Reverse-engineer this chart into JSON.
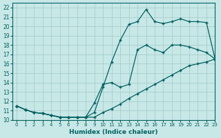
{
  "xlabel": "Humidex (Indice chaleur)",
  "bg_color": "#c8e8e8",
  "line_color": "#006060",
  "xlim": [
    -0.5,
    23
  ],
  "ylim": [
    10,
    22.5
  ],
  "xticks": [
    0,
    1,
    2,
    3,
    4,
    5,
    6,
    7,
    8,
    9,
    10,
    11,
    12,
    13,
    14,
    15,
    16,
    17,
    18,
    19,
    20,
    21,
    22,
    23
  ],
  "yticks": [
    10,
    11,
    12,
    13,
    14,
    15,
    16,
    17,
    18,
    19,
    20,
    21,
    22
  ],
  "curve_top_x": [
    0,
    1,
    2,
    3,
    4,
    5,
    6,
    7,
    8,
    9,
    10,
    11,
    12,
    13,
    14,
    15,
    16,
    17,
    18,
    19,
    20,
    21,
    22,
    23
  ],
  "curve_top_y": [
    11.5,
    11.1,
    10.8,
    10.7,
    10.5,
    10.3,
    10.3,
    10.3,
    10.3,
    10.8,
    13.5,
    16.2,
    18.5,
    20.2,
    20.5,
    21.8,
    20.5,
    20.3,
    20.5,
    20.8,
    20.5,
    20.5,
    20.4,
    16.5
  ],
  "curve_mid_x": [
    0,
    1,
    2,
    3,
    4,
    5,
    6,
    7,
    8,
    9,
    10,
    11,
    12,
    13,
    14,
    15,
    16,
    17,
    18,
    19,
    20,
    21,
    22,
    23
  ],
  "curve_mid_y": [
    11.5,
    11.1,
    10.8,
    10.7,
    10.5,
    10.3,
    10.3,
    10.3,
    10.3,
    11.8,
    13.8,
    14.0,
    13.5,
    13.8,
    17.5,
    18.0,
    17.5,
    17.2,
    18.0,
    18.0,
    17.8,
    17.5,
    17.2,
    16.5
  ],
  "curve_bot_x": [
    0,
    1,
    2,
    3,
    4,
    5,
    6,
    7,
    8,
    9,
    10,
    11,
    12,
    13,
    14,
    15,
    16,
    17,
    18,
    19,
    20,
    21,
    22,
    23
  ],
  "curve_bot_y": [
    11.5,
    11.1,
    10.8,
    10.7,
    10.5,
    10.3,
    10.3,
    10.3,
    10.3,
    10.3,
    10.8,
    11.2,
    11.7,
    12.3,
    12.8,
    13.3,
    13.8,
    14.3,
    14.8,
    15.3,
    15.8,
    16.0,
    16.2,
    16.5
  ]
}
